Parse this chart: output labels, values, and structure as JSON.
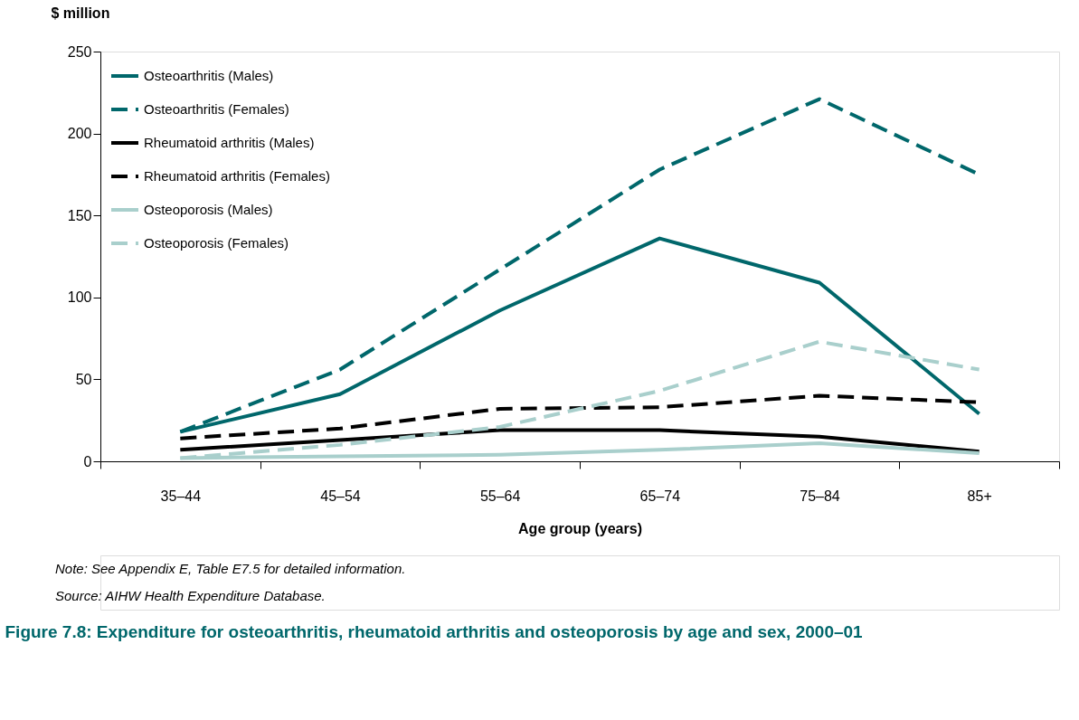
{
  "chart_data": {
    "type": "line",
    "title": "Figure 7.8: Expenditure for osteoarthritis, rheumatoid arthritis and osteoporosis by age and sex, 2000–01",
    "xlabel": "Age group (years)",
    "ylabel": "$ million",
    "categories": [
      "35–44",
      "45–54",
      "55–64",
      "65–74",
      "75–84",
      "85+"
    ],
    "ylim": [
      0,
      250
    ],
    "yticks": [
      0,
      50,
      100,
      150,
      200,
      250
    ],
    "grid": false,
    "legend": "top left",
    "marker": "none",
    "series": [
      {
        "name": "Osteoarthritis (Males)",
        "color": "#00676b",
        "line_style": "solid",
        "values": [
          18,
          41,
          92,
          136,
          109,
          29
        ]
      },
      {
        "name": "Osteoarthritis (Females)",
        "color": "#00676b",
        "line_style": "dashed",
        "values": [
          18,
          56,
          117,
          178,
          221,
          175
        ]
      },
      {
        "name": "Rheumatoid arthritis (Males)",
        "color": "#000000",
        "line_style": "solid",
        "values": [
          7,
          13,
          19,
          19,
          15,
          6
        ]
      },
      {
        "name": "Rheumatoid arthritis (Females)",
        "color": "#000000",
        "line_style": "dashed",
        "values": [
          14,
          20,
          32,
          33,
          40,
          36
        ]
      },
      {
        "name": "Osteoporosis (Males)",
        "color": "#a9cfcc",
        "line_style": "solid",
        "values": [
          2,
          3,
          4,
          7,
          11,
          5
        ]
      },
      {
        "name": "Osteoporosis (Females)",
        "color": "#a9cfcc",
        "line_style": "dashed",
        "values": [
          2,
          10,
          21,
          43,
          73,
          56
        ]
      }
    ],
    "annotations": [
      "Note: See Appendix E, Table E7.5 for detailed information.",
      "Source: AIHW Health Expenditure Database."
    ]
  }
}
